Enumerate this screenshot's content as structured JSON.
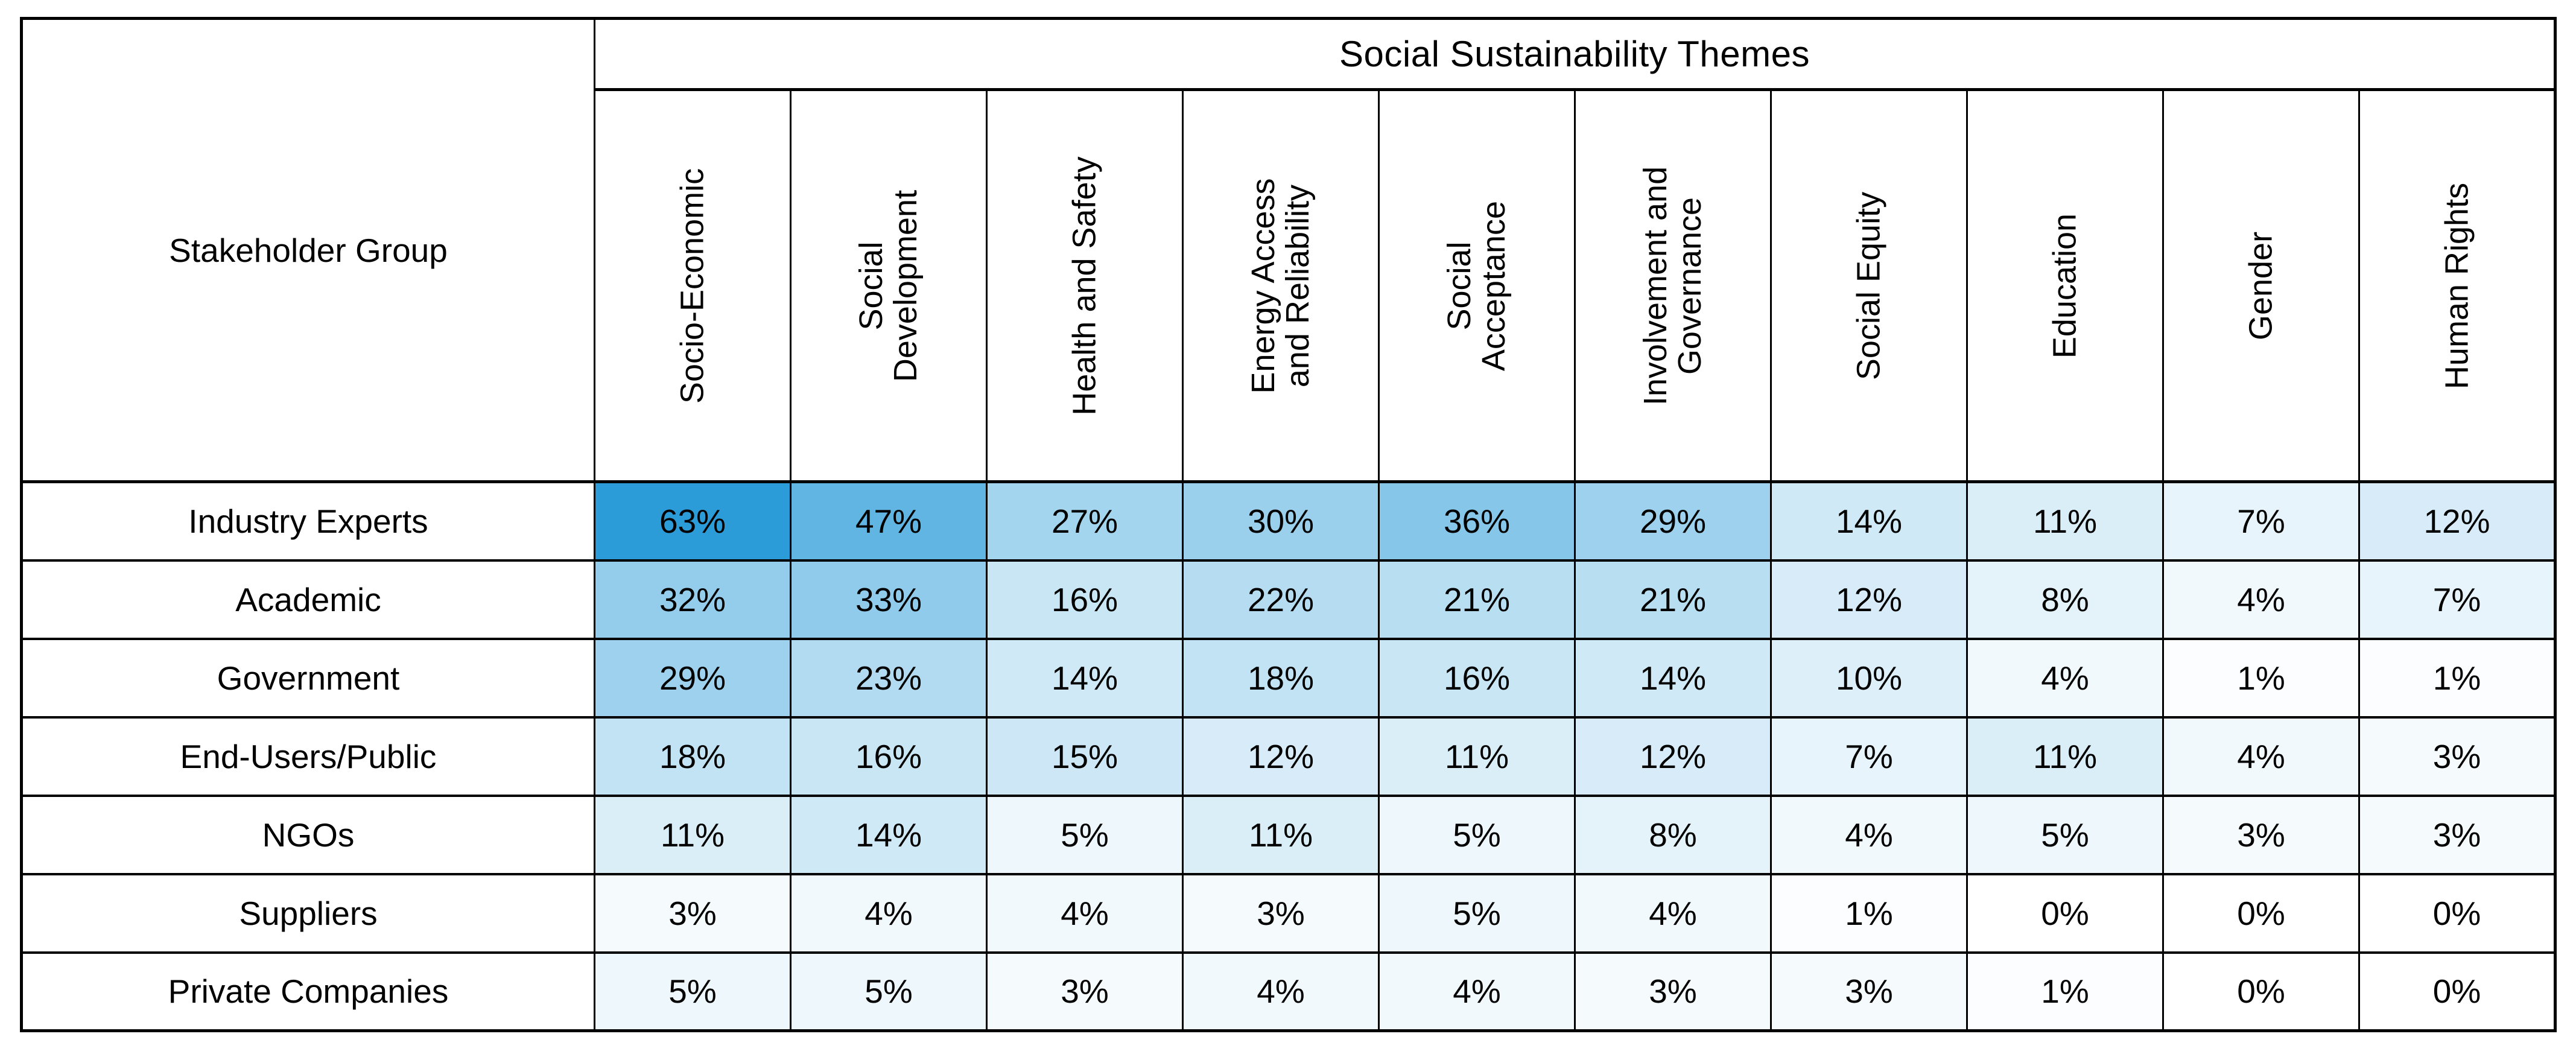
{
  "page": {
    "background": "#FFFFFF"
  },
  "chart_data": {
    "type": "heatmap",
    "title": "Social Sustainability Themes",
    "row_header": "Stakeholder Group",
    "value_suffix": "%",
    "columns": [
      "Socio-Economic",
      "Social Development",
      "Health and Safety",
      "Energy Access and Reliability",
      "Social Acceptance",
      "Involvement and Governance",
      "Social Equity",
      "Education",
      "Gender",
      "Human Rights"
    ],
    "columns_display": [
      "Socio-Economic",
      "Social\nDevelopment",
      "Health and Safety",
      "Energy Access\nand Reliability",
      "Social\nAcceptance",
      "Involvement and\nGovernance",
      "Social Equity",
      "Education",
      "Gender",
      "Human Rights"
    ],
    "rows": [
      {
        "name": "Industry Experts",
        "values": [
          63,
          47,
          27,
          30,
          36,
          29,
          14,
          11,
          7,
          12
        ]
      },
      {
        "name": "Academic",
        "values": [
          32,
          33,
          16,
          22,
          21,
          21,
          12,
          8,
          4,
          7
        ]
      },
      {
        "name": "Government",
        "values": [
          29,
          23,
          14,
          18,
          16,
          14,
          10,
          4,
          1,
          1
        ]
      },
      {
        "name": "End-Users/Public",
        "values": [
          18,
          16,
          15,
          12,
          11,
          12,
          7,
          11,
          4,
          3
        ]
      },
      {
        "name": "NGOs",
        "values": [
          11,
          14,
          5,
          11,
          5,
          8,
          4,
          5,
          3,
          3
        ]
      },
      {
        "name": "Suppliers",
        "values": [
          3,
          4,
          4,
          3,
          5,
          4,
          1,
          0,
          0,
          0
        ]
      },
      {
        "name": "Private Companies",
        "values": [
          5,
          5,
          3,
          4,
          4,
          3,
          3,
          1,
          0,
          0
        ]
      }
    ],
    "color_scale": {
      "min_color": "#FFFFFF",
      "max_color": "#2B9CD8",
      "domain": [
        0,
        63
      ]
    },
    "border_color": "#000000",
    "text_color": "#000000",
    "grid": true,
    "legend": "none"
  }
}
